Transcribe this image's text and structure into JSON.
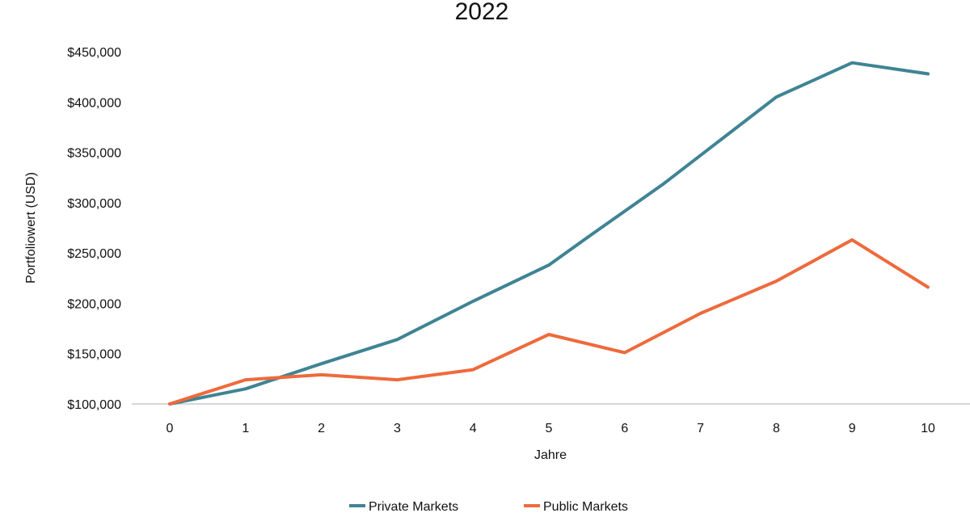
{
  "chart_data": {
    "type": "line",
    "title": "2022",
    "xlabel": "Jahre",
    "ylabel": "Portfoliowert (USD)",
    "x": [
      0,
      1,
      2,
      3,
      4,
      5,
      6,
      7,
      8,
      9,
      10
    ],
    "xticks": [
      "0",
      "1",
      "2",
      "3",
      "4",
      "5",
      "6",
      "7",
      "8",
      "9",
      "10"
    ],
    "yticks": [
      "$100,000",
      "$150,000",
      "$200,000",
      "$250,000",
      "$300,000",
      "$350,000",
      "$400,000",
      "$450,000"
    ],
    "ylim": [
      100000,
      450000
    ],
    "grid": false,
    "legend_position": "bottom",
    "series": [
      {
        "name": "Private Markets",
        "color": "#3f8494",
        "x": [
          0,
          1,
          2,
          3,
          4,
          5,
          5.5,
          6.5,
          8,
          9,
          10
        ],
        "values": [
          100000,
          115000,
          140000,
          164000,
          202000,
          238000,
          265000,
          318000,
          405000,
          439000,
          428000
        ]
      },
      {
        "name": "Public Markets",
        "color": "#ee6a3c",
        "x": [
          0,
          1,
          2,
          3,
          4,
          5,
          6,
          7,
          8,
          9,
          10
        ],
        "values": [
          100000,
          124000,
          129000,
          124000,
          134000,
          169000,
          151000,
          190000,
          222000,
          263000,
          216000
        ]
      }
    ]
  }
}
